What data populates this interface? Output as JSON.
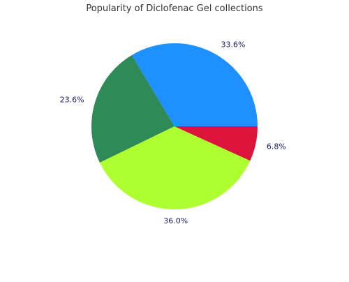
{
  "chart_data": {
    "type": "pie",
    "title": "Popularity of Diclofenac Gel collections",
    "start_angle_deg": 0,
    "direction": "counterclockwise",
    "slices": [
      {
        "value": 33.6,
        "label": "33.6%",
        "color": "#1e90ff"
      },
      {
        "value": 23.6,
        "label": "23.6%",
        "color": "#2e8b57"
      },
      {
        "value": 36.0,
        "label": "36.0%",
        "color": "#adff2f"
      },
      {
        "value": 6.8,
        "label": "6.8%",
        "color": "#dc143c"
      }
    ]
  }
}
